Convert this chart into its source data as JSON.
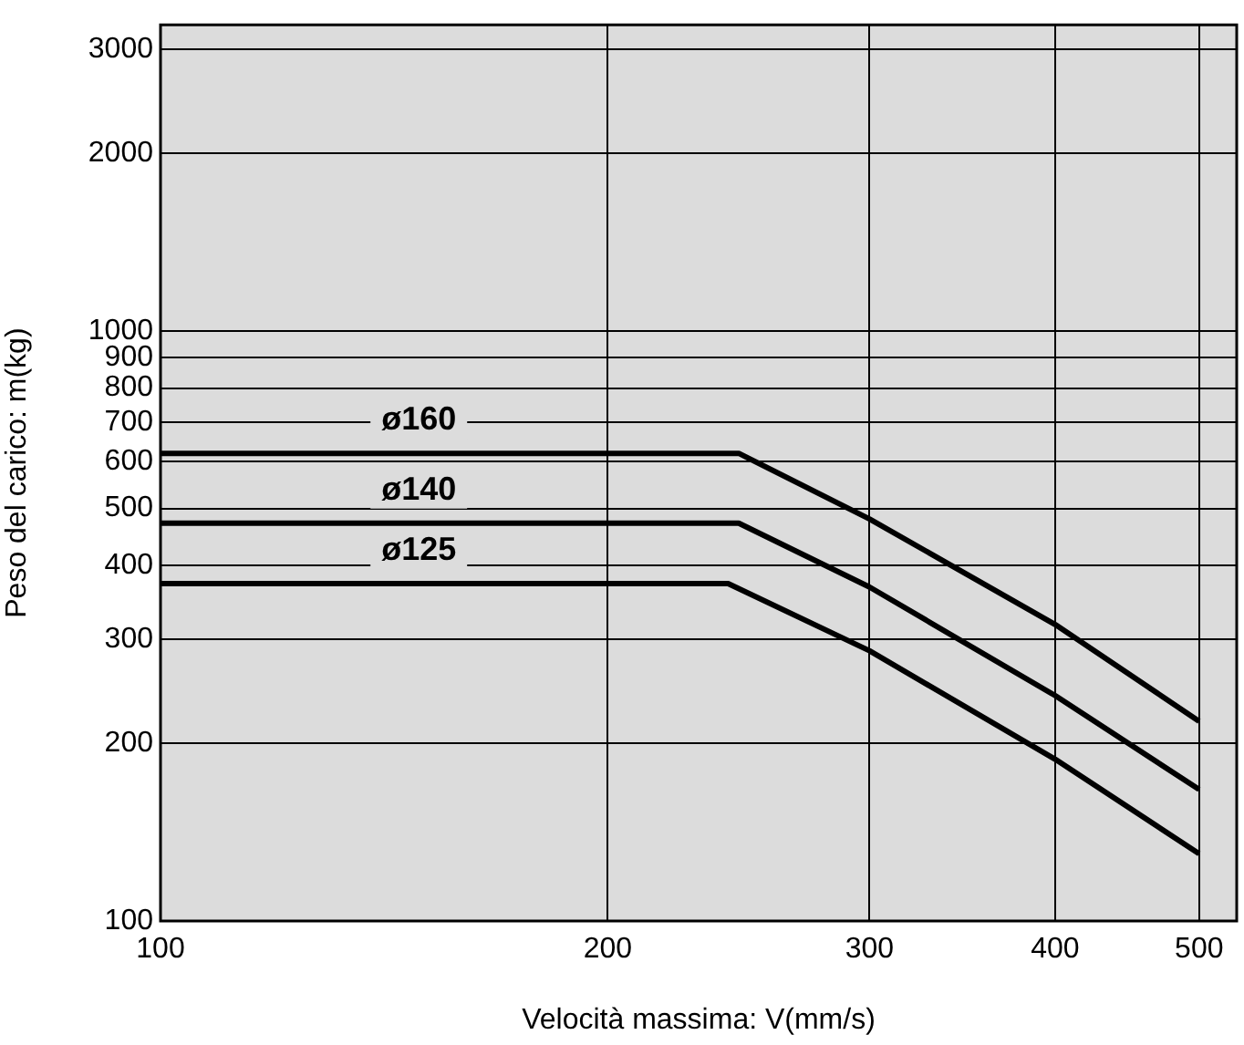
{
  "chart_data": {
    "type": "line",
    "xlabel": "Velocità massima: V(mm/s)",
    "ylabel": "Peso del carico: m(kg)",
    "log": "xy",
    "grid": true,
    "legend": false,
    "marker": "none",
    "line_style": "solid",
    "xlim": [
      100,
      530
    ],
    "xticks": [
      100,
      200,
      300,
      400,
      500
    ],
    "ylim": [
      100,
      3300
    ],
    "yticks": [
      100,
      200,
      300,
      400,
      500,
      600,
      700,
      800,
      900,
      1000,
      2000,
      3000
    ],
    "series": [
      {
        "name": "ø160",
        "color": "#000000",
        "x": [
          100,
          245,
          300,
          400,
          500
        ],
        "values": [
          620,
          620,
          480,
          318,
          218
        ]
      },
      {
        "name": "ø140",
        "color": "#000000",
        "x": [
          100,
          245,
          300,
          400,
          500
        ],
        "values": [
          472,
          472,
          368,
          241,
          167
        ]
      },
      {
        "name": "ø125",
        "color": "#000000",
        "x": [
          100,
          241,
          300,
          400,
          500
        ],
        "values": [
          373,
          373,
          287,
          188,
          130
        ]
      }
    ]
  }
}
